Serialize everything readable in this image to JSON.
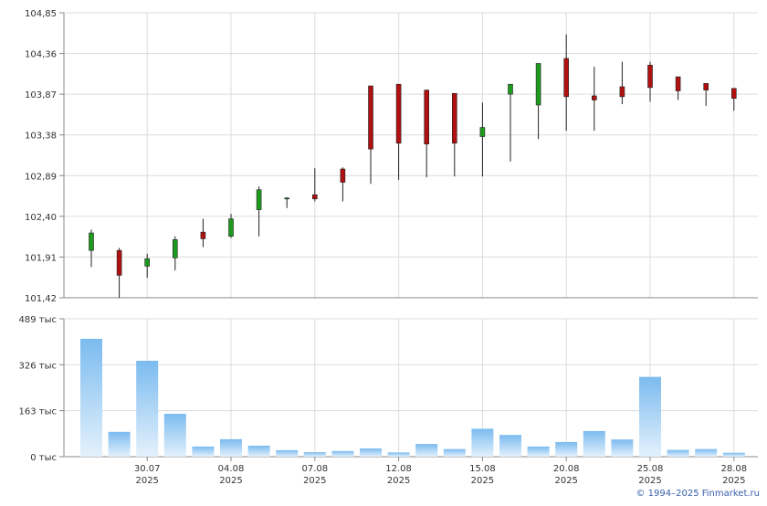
{
  "chart_data": [
    {
      "type": "candlestick",
      "ylim": [
        101.42,
        104.85
      ],
      "y_ticks": [
        "104,85",
        "104,36",
        "103,87",
        "103,38",
        "102,89",
        "102,40",
        "101,91",
        "101,42"
      ],
      "up_color": "#1e9b1e",
      "down_color": "#b01010",
      "grid": true,
      "candles": [
        {
          "open": 101.99,
          "high": 102.24,
          "low": 101.79,
          "close": 102.2
        },
        {
          "open": 101.99,
          "high": 102.02,
          "low": 101.42,
          "close": 101.69
        },
        {
          "open": 101.8,
          "high": 101.95,
          "low": 101.66,
          "close": 101.89
        },
        {
          "open": 101.9,
          "high": 102.16,
          "low": 101.75,
          "close": 102.12
        },
        {
          "open": 102.21,
          "high": 102.37,
          "low": 102.03,
          "close": 102.13
        },
        {
          "open": 102.16,
          "high": 102.43,
          "low": 102.14,
          "close": 102.37
        },
        {
          "open": 102.48,
          "high": 102.76,
          "low": 102.16,
          "close": 102.72
        },
        {
          "open": 102.62,
          "high": 102.63,
          "low": 102.5,
          "close": 102.62
        },
        {
          "open": 102.66,
          "high": 102.98,
          "low": 102.58,
          "close": 102.61
        },
        {
          "open": 102.97,
          "high": 102.99,
          "low": 102.58,
          "close": 102.81
        },
        {
          "open": 103.97,
          "high": 103.97,
          "low": 102.79,
          "close": 103.21
        },
        {
          "open": 103.99,
          "high": 103.99,
          "low": 102.84,
          "close": 103.28
        },
        {
          "open": 103.92,
          "high": 103.92,
          "low": 102.87,
          "close": 103.27
        },
        {
          "open": 103.88,
          "high": 103.88,
          "low": 102.88,
          "close": 103.28
        },
        {
          "open": 103.36,
          "high": 103.77,
          "low": 102.88,
          "close": 103.47
        },
        {
          "open": 103.87,
          "high": 103.99,
          "low": 103.06,
          "close": 103.99
        },
        {
          "open": 103.74,
          "high": 104.24,
          "low": 103.33,
          "close": 104.24
        },
        {
          "open": 104.3,
          "high": 104.59,
          "low": 103.43,
          "close": 103.84
        },
        {
          "open": 103.85,
          "high": 104.2,
          "low": 103.43,
          "close": 103.8
        },
        {
          "open": 103.96,
          "high": 104.26,
          "low": 103.75,
          "close": 103.84
        },
        {
          "open": 104.22,
          "high": 104.26,
          "low": 103.78,
          "close": 103.95
        },
        {
          "open": 104.08,
          "high": 104.08,
          "low": 103.8,
          "close": 103.91
        },
        {
          "open": 104.0,
          "high": 104.0,
          "low": 103.73,
          "close": 103.92
        },
        {
          "open": 103.94,
          "high": 103.94,
          "low": 103.67,
          "close": 103.82
        }
      ]
    },
    {
      "type": "bar",
      "ylim": [
        0,
        489
      ],
      "y_ticks": [
        "489 тыс",
        "326 тыс",
        "163 тыс",
        "0 тыс"
      ],
      "bar_color": "#7bbbef",
      "values": [
        418,
        88,
        340,
        152,
        36,
        62,
        39,
        23,
        16,
        20,
        29,
        15,
        45,
        27,
        99,
        77,
        36,
        52,
        91,
        61,
        283,
        24,
        27,
        14
      ]
    }
  ],
  "x_labels": [
    {
      "index": 2,
      "date": "30.07",
      "year": "2025"
    },
    {
      "index": 5,
      "date": "04.08",
      "year": "2025"
    },
    {
      "index": 8,
      "date": "07.08",
      "year": "2025"
    },
    {
      "index": 11,
      "date": "12.08",
      "year": "2025"
    },
    {
      "index": 14,
      "date": "15.08",
      "year": "2025"
    },
    {
      "index": 17,
      "date": "20.08",
      "year": "2025"
    },
    {
      "index": 20,
      "date": "25.08",
      "year": "2025"
    },
    {
      "index": 23,
      "date": "28.08",
      "year": "2025"
    }
  ],
  "copyright": "© 1994–2025 Finmarket.ru"
}
